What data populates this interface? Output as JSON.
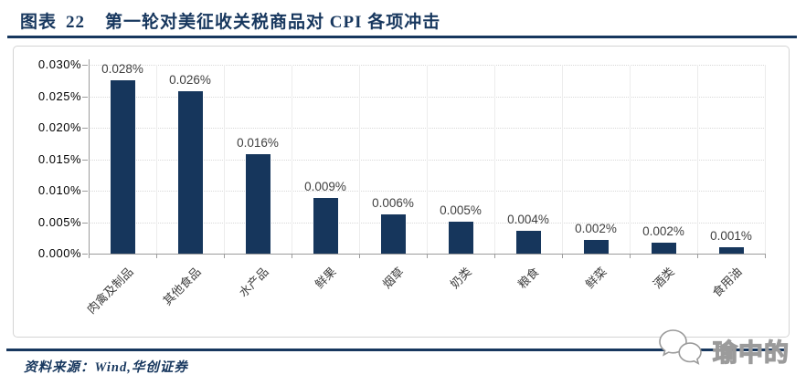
{
  "header": {
    "figure_label": "图表",
    "figure_number": "22",
    "title": "第一轮对美征收关税商品对 CPI 各项冲击"
  },
  "chart_data": {
    "type": "bar",
    "title": "第一轮对美征收关税商品对 CPI 各项冲击",
    "unit": "%",
    "categories": [
      "肉禽及制品",
      "其他食品",
      "水产品",
      "鲜果",
      "烟草",
      "奶类",
      "粮食",
      "鲜菜",
      "酒类",
      "食用油"
    ],
    "values": [
      0.028,
      0.026,
      0.016,
      0.009,
      0.006,
      0.005,
      0.004,
      0.002,
      0.002,
      0.001
    ],
    "value_labels": [
      "0.028%",
      "0.026%",
      "0.016%",
      "0.009%",
      "0.006%",
      "0.005%",
      "0.004%",
      "0.002%",
      "0.002%",
      "0.001%"
    ],
    "render_values": [
      0.0275,
      0.0258,
      0.0158,
      0.0088,
      0.0062,
      0.005,
      0.0036,
      0.0022,
      0.0018,
      0.001
    ],
    "y_ticks": [
      "0.030%",
      "0.025%",
      "0.020%",
      "0.015%",
      "0.010%",
      "0.005%",
      "0.000%"
    ],
    "ylim": [
      0,
      0.03
    ],
    "xlabel": "",
    "ylabel": "",
    "grid": "horizontal dotted + vertical light",
    "legend": "none",
    "bar_color": "#16365C"
  },
  "footer": {
    "source": "资料来源：Wind,华创证券"
  },
  "watermark": {
    "icon": "wechat-icon",
    "text": "瑜中的"
  },
  "colors": {
    "accent_navy": "#17375E",
    "bar": "#16365C",
    "axis_gray": "#9C9C9C",
    "label_gray": "#3F3F3F",
    "grid_light": "#D9D9D9",
    "frame_border": "#D4D4D4"
  }
}
